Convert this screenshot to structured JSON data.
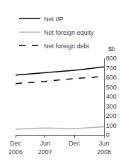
{
  "chart_data": {
    "type": "line",
    "ylabel": "$b",
    "categories": [
      "Dec 2006",
      "Jun 2007",
      "Dec",
      "Jun 2008"
    ],
    "series": [
      {
        "name": "Net IIP",
        "color": "#000000",
        "line_style": "solid",
        "values": [
          625,
          648,
          675,
          710
        ]
      },
      {
        "name": "Net foreign equity",
        "color": "#b0b0b0",
        "line_style": "solid",
        "values": [
          60,
          72,
          65,
          85
        ]
      },
      {
        "name": "Net foreign debt",
        "color": "#000000",
        "line_style": "dashed",
        "values": [
          535,
          558,
          588,
          610
        ]
      }
    ],
    "ylim": [
      0,
      800
    ],
    "yticks": [
      0,
      100,
      200,
      300,
      400,
      500,
      600,
      700,
      800
    ],
    "grid": false,
    "legend": "top left"
  }
}
